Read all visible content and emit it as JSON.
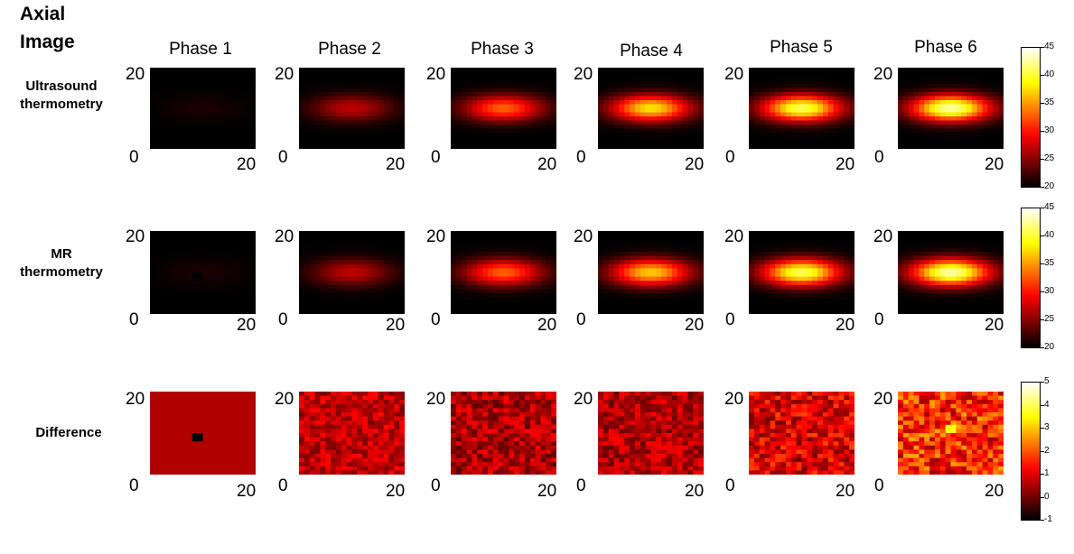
{
  "figure": {
    "title_line1": "Axial",
    "title_line2": "Image"
  },
  "rows": [
    {
      "label_line1": "Ultrasound",
      "label_line2": "thermometry"
    },
    {
      "label_line1": "MR",
      "label_line2": "thermometry"
    },
    {
      "label_line1": "Difference",
      "label_line2": ""
    }
  ],
  "phases": [
    "Phase 1",
    "Phase 2",
    "Phase 3",
    "Phase 4",
    "Phase 5",
    "Phase 6"
  ],
  "axis_ticks": {
    "y_top": "20",
    "origin": "0",
    "x_right": "20"
  },
  "colorbars": [
    {
      "ticks": [
        "45",
        "40",
        "35",
        "30",
        "25",
        "20"
      ],
      "min": 20,
      "max": 45
    },
    {
      "ticks": [
        "45",
        "40",
        "35",
        "30",
        "25",
        "20"
      ],
      "min": 20,
      "max": 45
    },
    {
      "ticks": [
        "5",
        "4",
        "3",
        "2",
        "1",
        "0",
        "-1"
      ],
      "min": -1,
      "max": 5
    }
  ],
  "chart_data": {
    "type": "heatmap",
    "colormap": "hot",
    "grid_size": [
      20,
      20
    ],
    "x_range": [
      0,
      20
    ],
    "y_range": [
      0,
      20
    ],
    "peak_temperature_by_phase": {
      "ultrasound": [
        21,
        27,
        33,
        38,
        41,
        43
      ],
      "mr": [
        21,
        27,
        33,
        37,
        41,
        43
      ]
    },
    "difference_range": [
      -1,
      5
    ]
  }
}
